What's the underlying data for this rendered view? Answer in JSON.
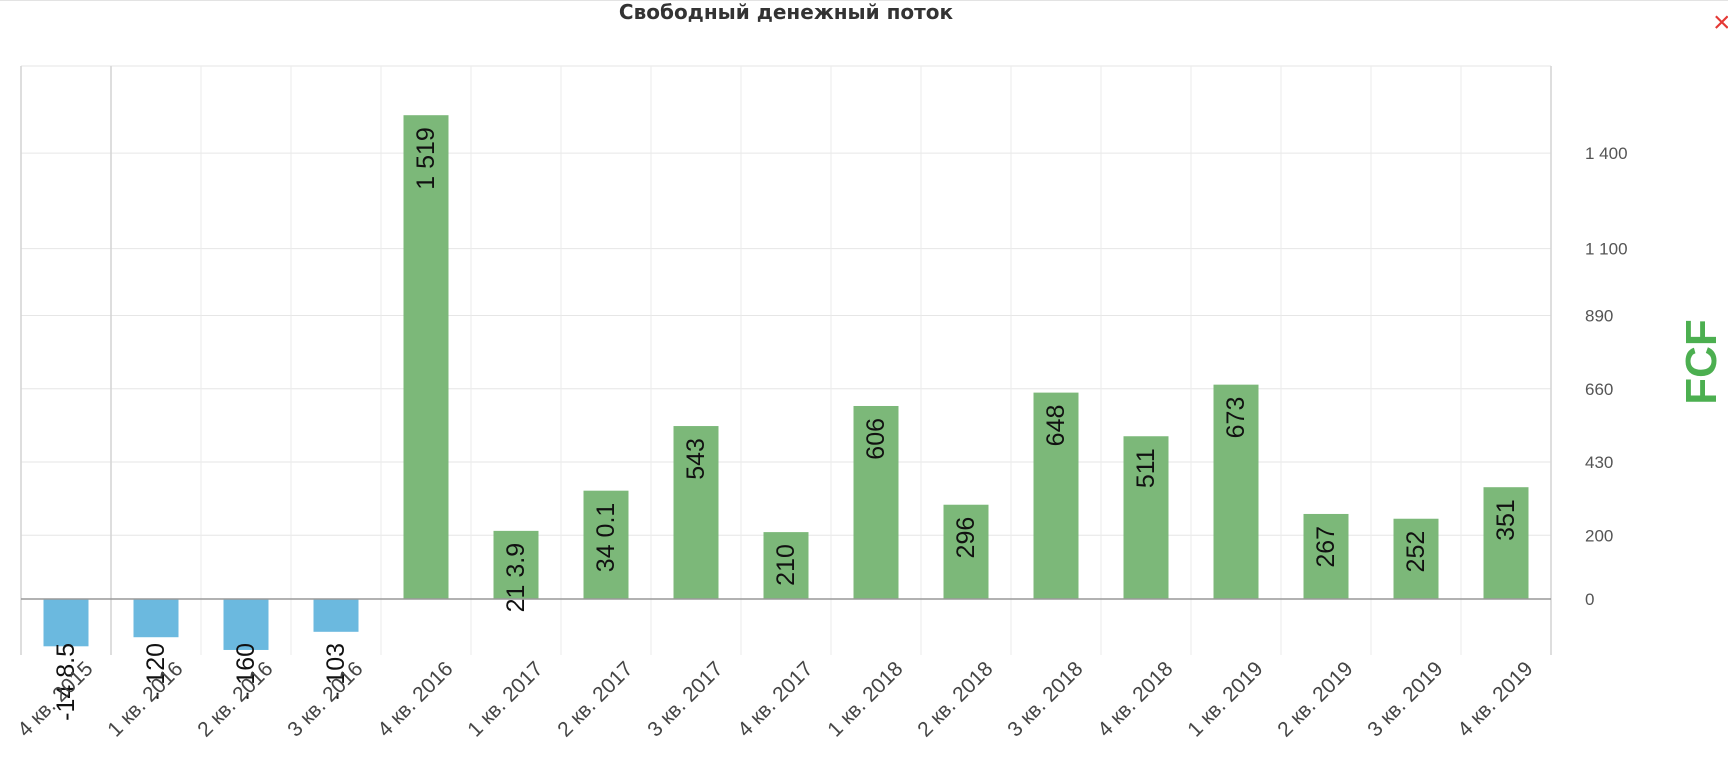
{
  "title": "Свободный денежный поток",
  "close_label": "×",
  "colors": {
    "positive": "#7cb879",
    "negative": "#6bb9df",
    "axis_title": "#4caf50",
    "close": "#e53935"
  },
  "chart_data": {
    "type": "bar",
    "categories": [
      "4 кв. 2015",
      "1 кв. 2016",
      "2 кв. 2016",
      "3 кв. 2016",
      "4 кв. 2016",
      "1 кв. 2017",
      "2 кв. 2017",
      "3 кв. 2017",
      "4 кв. 2017",
      "1 кв. 2018",
      "2 кв. 2018",
      "3 кв. 2018",
      "4 кв. 2018",
      "1 кв. 2019",
      "2 кв. 2019",
      "3 кв. 2019",
      "4 кв. 2019"
    ],
    "values": [
      -148.5,
      -120,
      -160,
      -103,
      1519,
      213.9,
      340.1,
      543,
      210,
      606,
      296,
      648,
      511,
      673,
      267,
      252,
      351
    ],
    "value_labels": [
      "-14 8.5",
      "- 120",
      "- 160",
      "- 103",
      "1 519",
      "21 3.9",
      "34 0.1",
      "543",
      "210",
      "606",
      "296",
      "648",
      "511",
      "673",
      "267",
      "252",
      "351"
    ],
    "yticks": [
      0,
      200,
      430,
      660,
      890,
      1100,
      1400
    ],
    "ytick_labels": [
      "0",
      "200",
      "430",
      "660",
      "890",
      "1 100",
      "1 400"
    ],
    "ylabel": "FCF",
    "ylim": [
      -160,
      1519
    ],
    "grid": true,
    "yaxis_position": "right"
  }
}
